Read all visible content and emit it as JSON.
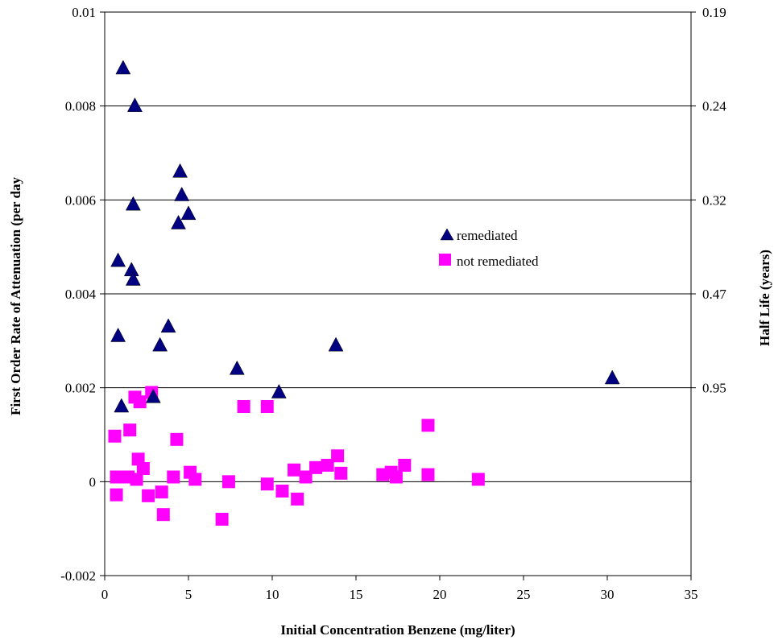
{
  "chart_data": {
    "type": "scatter",
    "title": "",
    "xlabel": "Initial Concentration Benzene (mg/liter)",
    "ylabel": "First Order Rate of Attenuation (per day",
    "y2label": "Half Life (years)",
    "xlim": [
      0,
      35
    ],
    "ylim": [
      -0.002,
      0.01
    ],
    "xticks": [
      "0",
      "5",
      "10",
      "15",
      "20",
      "25",
      "30",
      "35"
    ],
    "yticks": [
      "-0.002",
      "0",
      "0.002",
      "0.004",
      "0.006",
      "0.008",
      "0.01"
    ],
    "y2ticks": [
      "0.95",
      "0.47",
      "0.32",
      "0.24",
      "0.19"
    ],
    "grid": "horizontal",
    "legend_position": "center-right",
    "series": [
      {
        "name": "remediated",
        "marker": "triangle",
        "color": "#000080",
        "x": [
          1.1,
          1.8,
          1.7,
          4.5,
          4.6,
          5.0,
          4.4,
          0.8,
          1.6,
          1.7,
          3.8,
          0.8,
          3.3,
          13.8,
          7.9,
          2.9,
          1.0,
          10.4,
          30.3
        ],
        "y": [
          0.0088,
          0.008,
          0.0059,
          0.0066,
          0.0061,
          0.0057,
          0.0055,
          0.0047,
          0.0045,
          0.0043,
          0.0033,
          0.0031,
          0.0029,
          0.0029,
          0.0024,
          0.0018,
          0.0016,
          0.0019,
          0.0022
        ]
      },
      {
        "name": "not remediated",
        "marker": "square",
        "color": "#FF00FF",
        "x": [
          0.6,
          1.5,
          1.8,
          2.1,
          2.8,
          4.3,
          8.3,
          9.7,
          19.3,
          0.7,
          0.7,
          1.4,
          1.9,
          2.0,
          2.3,
          2.6,
          3.4,
          3.5,
          4.1,
          5.1,
          5.4,
          7.0,
          7.4,
          9.7,
          10.6,
          11.3,
          11.5,
          12.0,
          12.6,
          13.3,
          13.9,
          14.1,
          16.6,
          17.1,
          17.4,
          17.9,
          19.3,
          22.3
        ],
        "y": [
          0.00097,
          0.0011,
          0.0018,
          0.0017,
          0.0019,
          0.0009,
          0.0016,
          0.0016,
          0.0012,
          0.0001,
          -0.00028,
          0.0001,
          5e-05,
          0.00048,
          0.00028,
          -0.0003,
          -0.00022,
          -0.0007,
          0.0001,
          0.0002,
          5e-05,
          -0.0008,
          0.0,
          -5e-05,
          -0.0002,
          0.00025,
          -0.00037,
          0.0001,
          0.0003,
          0.00035,
          0.00055,
          0.00018,
          0.00015,
          0.0002,
          0.0001,
          0.00035,
          0.00015,
          5e-05
        ]
      }
    ]
  }
}
